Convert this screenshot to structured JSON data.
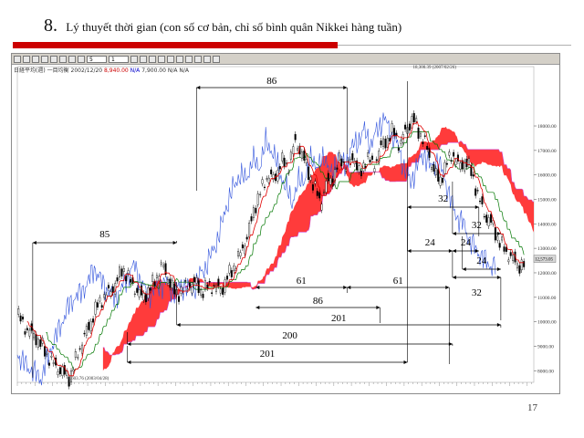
{
  "slide": {
    "number": "8.",
    "title": "Lý thuyết thời gian (con số cơ bản, chỉ số bình quân Nikkei hàng tuần)",
    "page": "17"
  },
  "toolbar": {
    "period_value": "5",
    "scale_value": "1",
    "status_prefix": "日経平均(週) 一目均衡",
    "status_date": "2002/12/20",
    "status_red": "8,940.00",
    "status_blue": "N/A",
    "status_extra": "7,900.00 N/A N/A"
  },
  "chart_data": {
    "type": "candlestick",
    "title": "",
    "xlabel": "",
    "ylabel": "",
    "ylim": [
      7600,
      20200
    ],
    "y_ticks": [
      "8000.00",
      "9000.00",
      "10000.00",
      "11000.00",
      "12000.00",
      "13000.00",
      "14000.00",
      "15000.00",
      "16000.00",
      "17000.00",
      "18000.00"
    ],
    "annotations": {
      "low_point": "7,603.76 (2003/04/28)",
      "high_point": "18,300.39 (2007/02/26)",
      "last_price": "12,573.05"
    },
    "price_path": [
      [
        0,
        10300
      ],
      [
        8,
        9700
      ],
      [
        16,
        9400
      ],
      [
        24,
        8900
      ],
      [
        30,
        8400
      ],
      [
        36,
        8150
      ],
      [
        42,
        7900
      ],
      [
        48,
        7700
      ],
      [
        54,
        8600
      ],
      [
        60,
        9300
      ],
      [
        66,
        9900
      ],
      [
        72,
        10600
      ],
      [
        78,
        11000
      ],
      [
        84,
        11200
      ],
      [
        90,
        11600
      ],
      [
        96,
        12200
      ],
      [
        102,
        11700
      ],
      [
        108,
        11300
      ],
      [
        114,
        11000
      ],
      [
        120,
        11300
      ],
      [
        126,
        11800
      ],
      [
        132,
        12300
      ],
      [
        138,
        11700
      ],
      [
        144,
        11100
      ],
      [
        150,
        11300
      ],
      [
        156,
        11500
      ],
      [
        162,
        11600
      ],
      [
        168,
        11200
      ],
      [
        174,
        11500
      ],
      [
        180,
        11400
      ],
      [
        186,
        11300
      ],
      [
        192,
        11900
      ],
      [
        198,
        12300
      ],
      [
        204,
        12900
      ],
      [
        210,
        13600
      ],
      [
        216,
        14700
      ],
      [
        222,
        15400
      ],
      [
        228,
        16000
      ],
      [
        234,
        15800
      ],
      [
        240,
        16600
      ],
      [
        246,
        16300
      ],
      [
        252,
        17300
      ],
      [
        258,
        17000
      ],
      [
        264,
        16200
      ],
      [
        270,
        15500
      ],
      [
        276,
        14900
      ],
      [
        282,
        15700
      ],
      [
        288,
        15900
      ],
      [
        294,
        16700
      ],
      [
        300,
        16300
      ],
      [
        306,
        16800
      ],
      [
        312,
        15900
      ],
      [
        318,
        16800
      ],
      [
        324,
        16300
      ],
      [
        330,
        17100
      ],
      [
        336,
        17400
      ],
      [
        342,
        17800
      ],
      [
        348,
        17200
      ],
      [
        354,
        17900
      ],
      [
        360,
        18300
      ],
      [
        366,
        17700
      ],
      [
        372,
        17200
      ],
      [
        378,
        16300
      ],
      [
        384,
        15700
      ],
      [
        390,
        16400
      ],
      [
        396,
        16900
      ],
      [
        402,
        16300
      ],
      [
        408,
        16600
      ],
      [
        414,
        16000
      ],
      [
        420,
        15000
      ],
      [
        426,
        14300
      ],
      [
        432,
        14000
      ],
      [
        438,
        13300
      ],
      [
        444,
        12900
      ],
      [
        450,
        12600
      ],
      [
        456,
        12300
      ]
    ],
    "cycle_counts": [
      {
        "label": "86",
        "from": "2005/05",
        "to": "2006/12"
      },
      {
        "label": "85",
        "from": "2003/04",
        "to": "2005/01"
      },
      {
        "label": "61",
        "from": "2005/05",
        "to": "2006/08"
      },
      {
        "label": "61",
        "from": "2006/08",
        "to": "2007/10"
      },
      {
        "label": "86",
        "from": "2005/05",
        "to": "2007/01"
      },
      {
        "label": "201",
        "from": "2004/02",
        "to": "2008/01"
      },
      {
        "label": "200",
        "from": "2003/04",
        "to": "2007/08"
      },
      {
        "label": "201",
        "from": "2003/04",
        "to": "2007/02"
      },
      {
        "label": "32",
        "from": "2007/02",
        "to": "2007/10"
      },
      {
        "label": "32",
        "from": "2007/07",
        "to": "2008/03"
      },
      {
        "label": "24",
        "from": "2007/02",
        "to": "2007/08"
      },
      {
        "label": "24",
        "from": "2007/08",
        "to": "2008/01"
      },
      {
        "label": "24",
        "from": "2007/10",
        "to": "2008/03"
      },
      {
        "label": "32",
        "from": "2007/08",
        "to": "2008/03"
      }
    ]
  },
  "colors": {
    "red_bar": "#cc0000",
    "cloud": "#ff3030",
    "conversion_line": "#e00000",
    "base_line": "#007700",
    "lagging_span": "#3355dd",
    "span_b": "#cc44cc"
  }
}
